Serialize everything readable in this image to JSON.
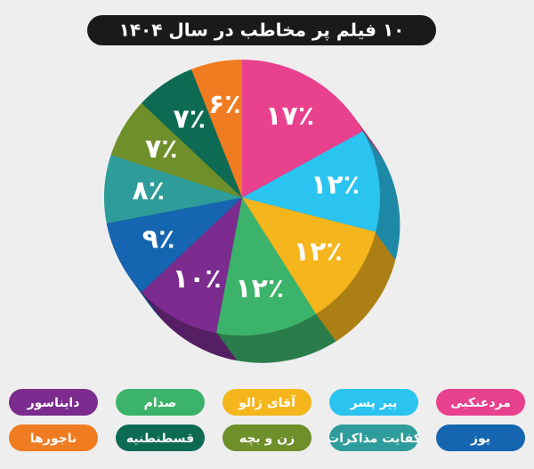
{
  "chart_data": {
    "type": "pie",
    "title": "۱۰ فیلم پر مخاطب در سال ۱۴۰۴",
    "categories": [
      "مردعنکبی",
      "پیر پسر",
      "آقای ژالو",
      "صدام",
      "دایناسور",
      "یوز",
      "کفایت مذاکرات",
      "زن و بچه",
      "قسطنطنیه",
      "ناجورها"
    ],
    "values": [
      17,
      12,
      12,
      12,
      10,
      9,
      8,
      7,
      7,
      6
    ],
    "value_labels": [
      "۱۷٪",
      "۱۲٪",
      "۱۲٪",
      "۱۲٪",
      "۱۰٪",
      "۹٪",
      "۸٪",
      "۷٪",
      "۷٪",
      "۶٪"
    ],
    "colors": [
      "#e8418e",
      "#2bc3ef",
      "#f5b51c",
      "#3cb36a",
      "#7b2c8e",
      "#1565b0",
      "#2e9c9a",
      "#6e8f2a",
      "#0e6b53",
      "#f07c22"
    ]
  }
}
